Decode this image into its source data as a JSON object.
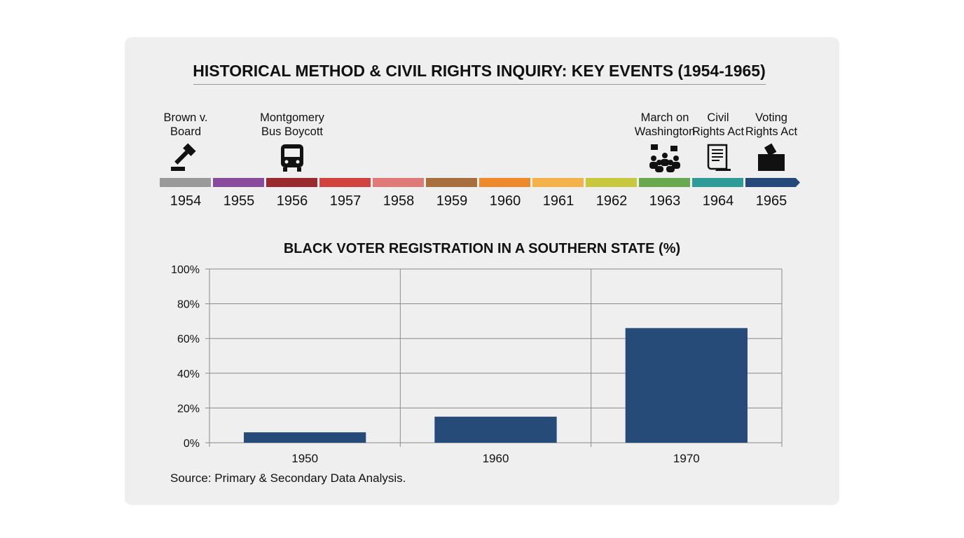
{
  "title": "HISTORICAL METHOD & CIVIL RIGHTS INQUIRY: KEY EVENTS (1954-1965)",
  "timeline": {
    "years": [
      "1954",
      "1955",
      "1956",
      "1957",
      "1958",
      "1959",
      "1960",
      "1961",
      "1962",
      "1963",
      "1964",
      "1965"
    ],
    "colors": [
      "#9a9a9a",
      "#8a4a9e",
      "#9b2a2e",
      "#d2433f",
      "#e07a78",
      "#a86e3e",
      "#ef8a2c",
      "#f6b24a",
      "#c8c83c",
      "#6aa84f",
      "#2f9b98",
      "#254a7a"
    ],
    "events": [
      {
        "year": "1954",
        "line1": "Brown v.",
        "line2": "Board",
        "icon": "gavel-icon"
      },
      {
        "year": "1956",
        "line1": "Montgomery",
        "line2": "Bus Boycott",
        "icon": "bus-icon"
      },
      {
        "year": "1963",
        "line1": "March on",
        "line2": "Washington",
        "icon": "crowd-protest-icon"
      },
      {
        "year": "1964",
        "line1": "Civil",
        "line2": "Rights Act",
        "icon": "scroll-document-icon"
      },
      {
        "year": "1965",
        "line1": "Voting",
        "line2": "Rights Act",
        "icon": "ballot-box-icon"
      }
    ]
  },
  "chart_data": {
    "type": "bar",
    "title": "BLACK VOTER REGISTRATION IN A SOUTHERN STATE (%)",
    "categories": [
      "1950",
      "1960",
      "1970"
    ],
    "values": [
      6,
      15,
      66
    ],
    "ylim": [
      0,
      100
    ],
    "yticks": [
      "0%",
      "20%",
      "40%",
      "60%",
      "80%",
      "100%"
    ],
    "grid": true,
    "bar_color": "#264b78",
    "xlabel": "",
    "ylabel": ""
  },
  "source": "Source: Primary & Secondary Data Analysis."
}
